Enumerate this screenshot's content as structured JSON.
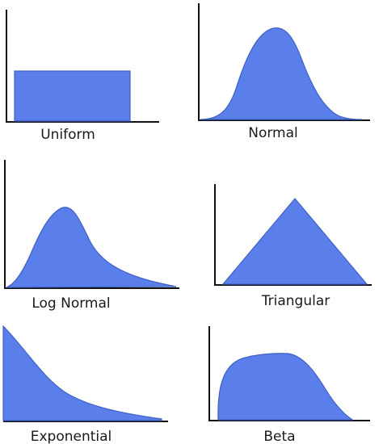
{
  "colors": {
    "fill": "#5b7fea",
    "edge": "#3f60c4",
    "axis": "#111111",
    "background": "#ffffff"
  },
  "panels": [
    {
      "id": "uniform",
      "label": "Uniform"
    },
    {
      "id": "normal",
      "label": "Normal"
    },
    {
      "id": "lognormal",
      "label": "Log Normal"
    },
    {
      "id": "triangular",
      "label": "Triangular"
    },
    {
      "id": "exponential",
      "label": "Exponential"
    },
    {
      "id": "beta",
      "label": "Beta"
    }
  ]
}
